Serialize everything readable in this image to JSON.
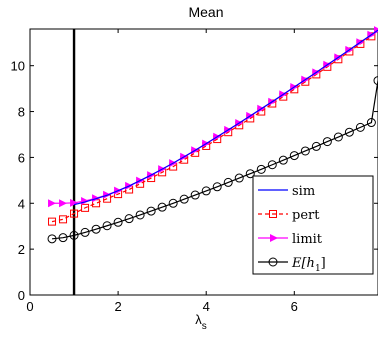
{
  "chart_data": {
    "type": "line",
    "title": "Mean",
    "xlabel": "λ",
    "xlabel_sub": "s",
    "ylabel": "",
    "xlim": [
      0,
      7.9
    ],
    "ylim": [
      0,
      11.6
    ],
    "xticks": [
      0,
      2,
      4,
      6
    ],
    "yticks": [
      0,
      2,
      4,
      6,
      8,
      10
    ],
    "grid": false,
    "legend_position": "lower-right",
    "vertical_line": {
      "x": 1.0,
      "color": "#000000"
    },
    "series": [
      {
        "name": "sim",
        "color": "#0000ff",
        "marker": "none",
        "x": [
          1.0,
          1.25,
          1.5,
          1.75,
          2.0,
          2.25,
          2.5,
          2.75,
          3.0,
          3.25,
          3.5,
          3.75,
          4.0,
          4.25,
          4.5,
          4.75,
          5.0,
          5.25,
          5.5,
          5.75,
          6.0,
          6.25,
          6.5,
          6.75,
          7.0,
          7.25,
          7.5,
          7.75,
          7.9
        ],
        "y": [
          3.94,
          4.06,
          4.2,
          4.35,
          4.55,
          4.75,
          4.99,
          5.23,
          5.49,
          5.75,
          6.03,
          6.31,
          6.6,
          6.9,
          7.2,
          7.5,
          7.81,
          8.12,
          8.43,
          8.75,
          9.07,
          9.39,
          9.71,
          10.04,
          10.36,
          10.69,
          11.02,
          11.35,
          11.55
        ]
      },
      {
        "name": "pert",
        "color": "#ff0000",
        "marker": "square",
        "x": [
          0.5,
          0.75,
          1.0,
          1.25,
          1.5,
          1.75,
          2.0,
          2.25,
          2.5,
          2.75,
          3.0,
          3.25,
          3.5,
          3.75,
          4.0,
          4.25,
          4.5,
          4.75,
          5.0,
          5.25,
          5.5,
          5.75,
          6.0,
          6.25,
          6.5,
          6.75,
          7.0,
          7.25,
          7.5,
          7.75
        ],
        "y": [
          3.2,
          3.3,
          3.55,
          3.8,
          4.0,
          4.2,
          4.4,
          4.6,
          4.85,
          5.1,
          5.35,
          5.6,
          5.9,
          6.2,
          6.5,
          6.8,
          7.1,
          7.4,
          7.7,
          8.0,
          8.35,
          8.65,
          8.97,
          9.3,
          9.62,
          9.95,
          10.28,
          10.62,
          10.95,
          11.28
        ]
      },
      {
        "name": "limit",
        "color": "#ff00ff",
        "marker": "triangle-right",
        "x": [
          0.5,
          0.75,
          1.0,
          1.25,
          1.5,
          1.75,
          2.0,
          2.25,
          2.5,
          2.75,
          3.0,
          3.25,
          3.5,
          3.75,
          4.0,
          4.25,
          4.5,
          4.75,
          5.0,
          5.25,
          5.5,
          5.75,
          6.0,
          6.25,
          6.5,
          6.75,
          7.0,
          7.25,
          7.5,
          7.75,
          7.9
        ],
        "y": [
          4.0,
          4.0,
          4.02,
          4.1,
          4.22,
          4.37,
          4.55,
          4.76,
          4.99,
          5.23,
          5.49,
          5.75,
          6.03,
          6.31,
          6.6,
          6.9,
          7.2,
          7.5,
          7.81,
          8.12,
          8.43,
          8.75,
          9.07,
          9.39,
          9.71,
          10.04,
          10.36,
          10.69,
          11.02,
          11.35,
          11.55
        ]
      },
      {
        "name": "E[h_1]",
        "color": "#000000",
        "marker": "circle",
        "x": [
          0.5,
          0.75,
          1.0,
          1.25,
          1.5,
          1.75,
          2.0,
          2.25,
          2.5,
          2.75,
          3.0,
          3.25,
          3.5,
          3.75,
          4.0,
          4.25,
          4.5,
          4.75,
          5.0,
          5.25,
          5.5,
          5.75,
          6.0,
          6.25,
          6.5,
          6.75,
          7.0,
          7.25,
          7.5,
          7.75,
          7.9
        ],
        "y": [
          2.45,
          2.5,
          2.6,
          2.73,
          2.87,
          3.02,
          3.17,
          3.33,
          3.49,
          3.66,
          3.83,
          4.0,
          4.18,
          4.36,
          4.54,
          4.72,
          4.91,
          5.1,
          5.29,
          5.48,
          5.68,
          5.88,
          6.08,
          6.28,
          6.48,
          6.69,
          6.89,
          7.1,
          7.31,
          7.52,
          9.35
        ]
      }
    ],
    "legend": [
      {
        "label": "sim",
        "series": 0
      },
      {
        "label": "pert",
        "series": 1
      },
      {
        "label": "limit",
        "series": 2
      },
      {
        "label_main": "E[h",
        "label_sub": "1",
        "label_end": "]",
        "series": 3
      }
    ]
  }
}
